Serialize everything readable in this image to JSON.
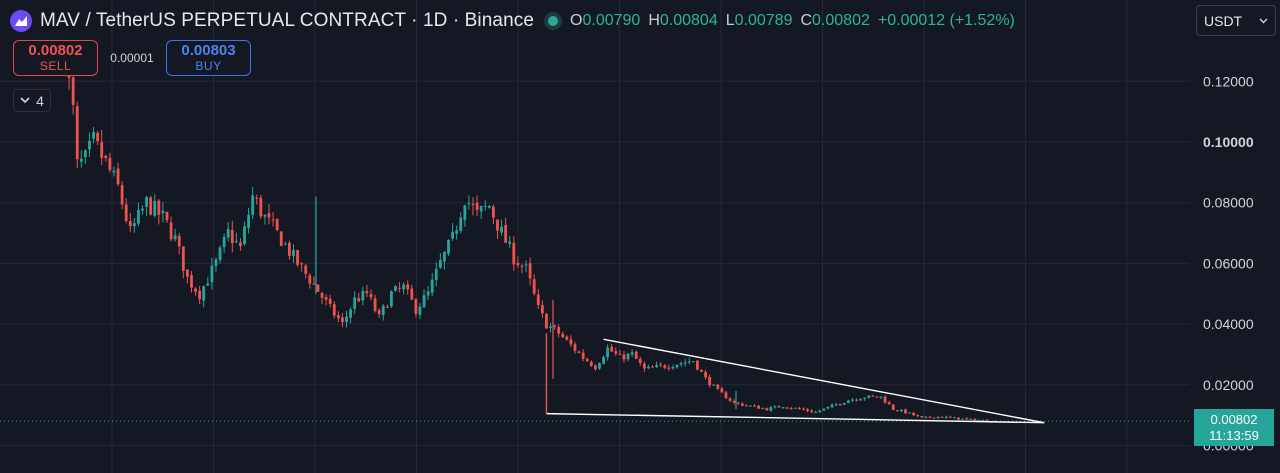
{
  "header": {
    "title": "MAV / TetherUS PERPETUAL CONTRACT · 1D · Binance",
    "ohlc": {
      "o_label": "O",
      "o_value": "0.00790",
      "h_label": "H",
      "h_value": "0.00804",
      "l_label": "L",
      "l_value": "0.00789",
      "c_label": "C",
      "c_value": "0.00802",
      "change": "+0.00012 (+1.52%)"
    }
  },
  "trade": {
    "sell_price": "0.00802",
    "sell_label": "SELL",
    "spread": "0.00001",
    "buy_price": "0.00803",
    "buy_label": "BUY"
  },
  "indicators": {
    "count": "4"
  },
  "currency": {
    "selected": "USDT"
  },
  "price_tag": {
    "price": "0.00802",
    "countdown": "11:13:59"
  },
  "colors": {
    "up": "#26a69a",
    "down": "#ef5350",
    "grid": "#23283a",
    "trendline": "#ffffff"
  },
  "chart_data": {
    "type": "candlestick",
    "title": "MAV / TetherUS PERPETUAL CONTRACT · 1D · Binance",
    "yaxis": {
      "ticks": [
        "0.12000",
        "0.10000",
        "0.08000",
        "0.06000",
        "0.04000",
        "0.02000",
        "0.00000"
      ],
      "range": [
        0,
        0.135
      ],
      "bold_tick": "0.10000"
    },
    "grid": true,
    "last_price": 0.00802,
    "price_path": [
      [
        0,
        0.128
      ],
      [
        2,
        0.11
      ],
      [
        3,
        0.092
      ],
      [
        5,
        0.094
      ],
      [
        7,
        0.1
      ],
      [
        10,
        0.093
      ],
      [
        13,
        0.085
      ],
      [
        16,
        0.07
      ],
      [
        20,
        0.08
      ],
      [
        24,
        0.075
      ],
      [
        27,
        0.068
      ],
      [
        30,
        0.055
      ],
      [
        33,
        0.05
      ],
      [
        37,
        0.06
      ],
      [
        40,
        0.07
      ],
      [
        43,
        0.065
      ],
      [
        46,
        0.082
      ],
      [
        49,
        0.075
      ],
      [
        53,
        0.068
      ],
      [
        57,
        0.06
      ],
      [
        61,
        0.053
      ],
      [
        65,
        0.045
      ],
      [
        68,
        0.04
      ],
      [
        71,
        0.048
      ],
      [
        74,
        0.05
      ],
      [
        77,
        0.042
      ],
      [
        80,
        0.05
      ],
      [
        83,
        0.052
      ],
      [
        86,
        0.045
      ],
      [
        89,
        0.05
      ],
      [
        92,
        0.06
      ],
      [
        95,
        0.068
      ],
      [
        98,
        0.082
      ],
      [
        101,
        0.076
      ],
      [
        104,
        0.079
      ],
      [
        107,
        0.07
      ],
      [
        110,
        0.062
      ],
      [
        113,
        0.058
      ],
      [
        116,
        0.045
      ],
      [
        118,
        0.04
      ],
      [
        121,
        0.037
      ],
      [
        124,
        0.033
      ],
      [
        127,
        0.029
      ],
      [
        130,
        0.026
      ],
      [
        133,
        0.032
      ],
      [
        136,
        0.029
      ],
      [
        139,
        0.03
      ],
      [
        142,
        0.025
      ],
      [
        146,
        0.026
      ],
      [
        150,
        0.027
      ],
      [
        154,
        0.028
      ],
      [
        157,
        0.022
      ],
      [
        160,
        0.018
      ],
      [
        164,
        0.014
      ],
      [
        168,
        0.013
      ],
      [
        172,
        0.012
      ],
      [
        176,
        0.013
      ],
      [
        180,
        0.012
      ],
      [
        184,
        0.011
      ],
      [
        188,
        0.013
      ],
      [
        192,
        0.015
      ],
      [
        196,
        0.016
      ],
      [
        200,
        0.016
      ],
      [
        203,
        0.012
      ],
      [
        206,
        0.011
      ],
      [
        210,
        0.009
      ],
      [
        214,
        0.0095
      ],
      [
        218,
        0.009
      ],
      [
        222,
        0.0085
      ],
      [
        225,
        0.0082
      ],
      [
        228,
        0.008
      ]
    ],
    "trendlines": [
      {
        "name": "upper",
        "from": [
          132,
          0.035
        ],
        "to": [
          240,
          0.0075
        ]
      },
      {
        "name": "lower",
        "from": [
          118,
          0.0105
        ],
        "to": [
          240,
          0.0075
        ]
      },
      {
        "name": "vertical",
        "from": [
          118,
          0.037
        ],
        "to": [
          118,
          0.0105
        ]
      }
    ]
  }
}
